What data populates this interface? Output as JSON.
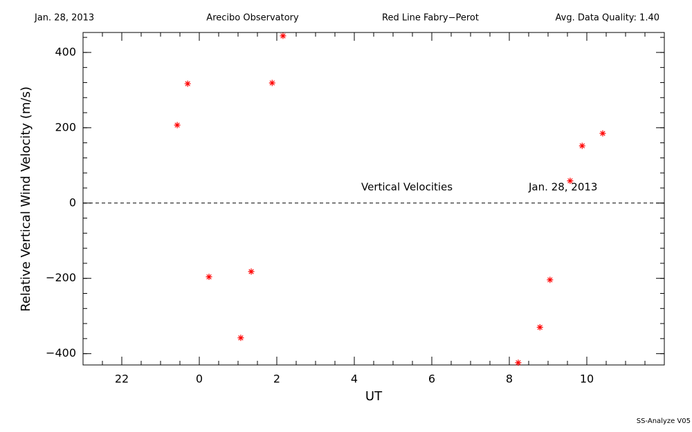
{
  "chart_data": {
    "type": "scatter",
    "header": [
      "Jan. 28, 2013",
      "Arecibo Observatory",
      "Red Line Fabry−Perot",
      "Avg. Data Quality: 1.40"
    ],
    "annotations": [
      "Vertical Velocities",
      "Jan. 28, 2013"
    ],
    "footer": "SS-Analyze V05",
    "x_label": "UT",
    "y_label": "Relative Vertical Wind Velocity (m/s)",
    "color": "#ff0000",
    "x": [
      -0.57,
      -0.3,
      0.25,
      1.07,
      1.34,
      1.88,
      2.16,
      8.23,
      8.79,
      9.05,
      9.57,
      9.88,
      10.41
    ],
    "values": [
      207,
      317,
      -196,
      -358,
      -182,
      319,
      444,
      -424,
      -330,
      -204,
      59,
      152,
      185
    ],
    "reference_line": 0,
    "xlim": [
      -3,
      12
    ],
    "ylim": [
      -430,
      453
    ],
    "xticks": [
      {
        "value": -2,
        "label": "22"
      },
      0,
      2,
      4,
      6,
      8,
      10
    ],
    "yticks": [
      {
        "value": -400,
        "label": "−400"
      },
      {
        "value": -200,
        "label": "−200"
      },
      0,
      200,
      400
    ],
    "x_minor_step": 0.5,
    "y_minor_step": 40
  }
}
